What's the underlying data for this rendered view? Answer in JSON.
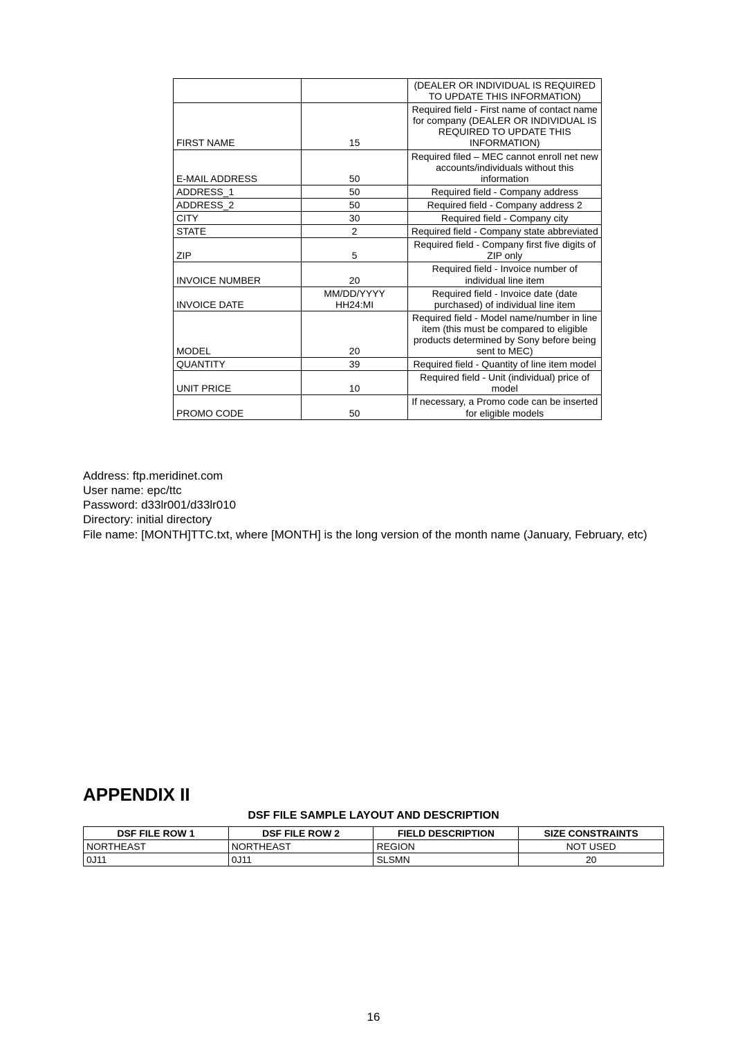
{
  "table1": {
    "rows": [
      {
        "field": "",
        "size": "",
        "desc": "(DEALER OR INDIVIDUAL IS REQUIRED TO UPDATE THIS INFORMATION)"
      },
      {
        "field": "FIRST NAME",
        "size": "15",
        "desc": "Required field - First name of contact name for company (DEALER OR INDIVIDUAL IS REQUIRED TO UPDATE THIS INFORMATION)"
      },
      {
        "field": "E-MAIL ADDRESS",
        "size": "50",
        "desc": "Required filed – MEC cannot enroll net new accounts/individuals without this information"
      },
      {
        "field": "ADDRESS_1",
        "size": "50",
        "desc": "Required field - Company address"
      },
      {
        "field": "ADDRESS_2",
        "size": "50",
        "desc": "Required field - Company address 2"
      },
      {
        "field": "CITY",
        "size": "30",
        "desc": "Required field - Company city"
      },
      {
        "field": "STATE",
        "size": "2",
        "desc": "Required field - Company state abbreviated"
      },
      {
        "field": "ZIP",
        "size": "5",
        "desc": "Required field - Company first five digits of ZIP only"
      },
      {
        "field": "INVOICE NUMBER",
        "size": "20",
        "desc": "Required field - Invoice number of individual line item"
      },
      {
        "field": "INVOICE DATE",
        "size": "MM/DD/YYYY HH24:MI",
        "desc": "Required field - Invoice date (date purchased) of individual line item"
      },
      {
        "field": "MODEL",
        "size": "20",
        "desc": "Required field - Model name/number in line item (this must be compared to eligible products determined by Sony before being sent to MEC)"
      },
      {
        "field": "QUANTITY",
        "size": "39",
        "desc": "Required field - Quantity of line item model"
      },
      {
        "field": "UNIT PRICE",
        "size": "10",
        "desc": "Required field - Unit (individual) price of model"
      },
      {
        "field": "PROMO CODE",
        "size": "50",
        "desc": "If necessary, a Promo code can be inserted for eligible models"
      }
    ]
  },
  "info": {
    "line1": "Address: ftp.meridinet.com",
    "line2": "User name: epc/ttc",
    "line3": "Password: d33lr001/d33lr010",
    "line4": "Directory: initial directory",
    "line5": "File name: [MONTH]TTC.txt, where [MONTH] is the long version of the month name (January, February, etc)"
  },
  "appendix": {
    "title": "APPENDIX II",
    "subtitle": "DSF FILE SAMPLE LAYOUT AND DESCRIPTION"
  },
  "table2": {
    "headers": {
      "c1": "DSF FILE ROW 1",
      "c2": "DSF FILE ROW 2",
      "c3": "FIELD DESCRIPTION",
      "c4": "SIZE CONSTRAINTS"
    },
    "rows": [
      {
        "c1": "NORTHEAST",
        "c2": "NORTHEAST",
        "c3": "REGION",
        "c4": "NOT USED"
      },
      {
        "c1": "0J11",
        "c2": "0J11",
        "c3": "SLSMN",
        "c4": "20"
      }
    ]
  },
  "pageNumber": "16"
}
